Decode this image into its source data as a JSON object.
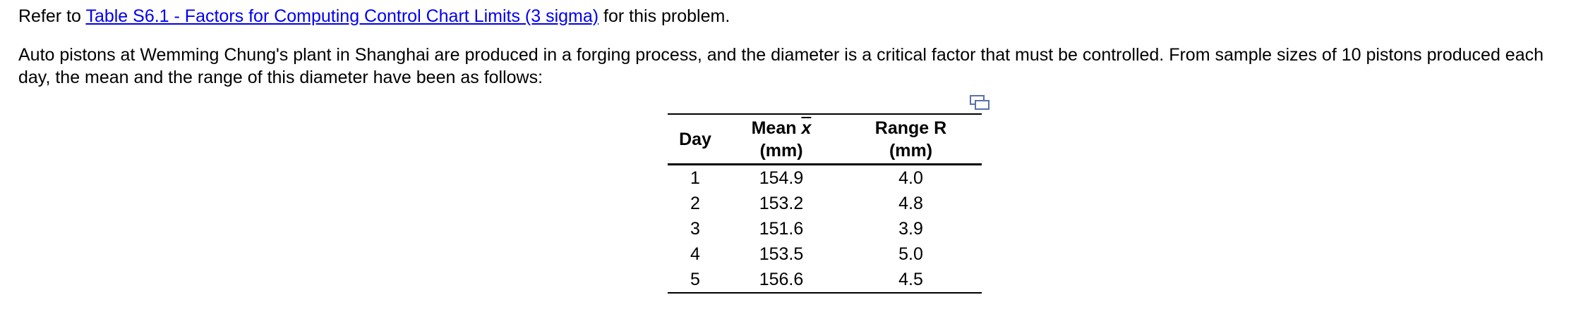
{
  "intro": {
    "prefix": "Refer to ",
    "link_text": "Table S6.1 - Factors for Computing Control Chart Limits (3 sigma)",
    "suffix": " for this problem."
  },
  "problem_text": "Auto pistons at Wemming Chung's plant in Shanghai are produced in a forging process, and the diameter is a critical factor that must be controlled. From sample sizes of 10 pistons produced each day, the mean and the range of this diameter have been as follows:",
  "icons": {
    "copy": "copy-to-clipboard-icon"
  },
  "table": {
    "headers": {
      "day": "Day",
      "mean_label": "Mean",
      "mean_symbol": "x",
      "mean_unit": "(mm)",
      "range_label": "Range R",
      "range_unit": "(mm)"
    },
    "rows": [
      {
        "day": "1",
        "mean": "154.9",
        "range": "4.0"
      },
      {
        "day": "2",
        "mean": "153.2",
        "range": "4.8"
      },
      {
        "day": "3",
        "mean": "151.6",
        "range": "3.9"
      },
      {
        "day": "4",
        "mean": "153.5",
        "range": "5.0"
      },
      {
        "day": "5",
        "mean": "156.6",
        "range": "4.5"
      }
    ]
  }
}
